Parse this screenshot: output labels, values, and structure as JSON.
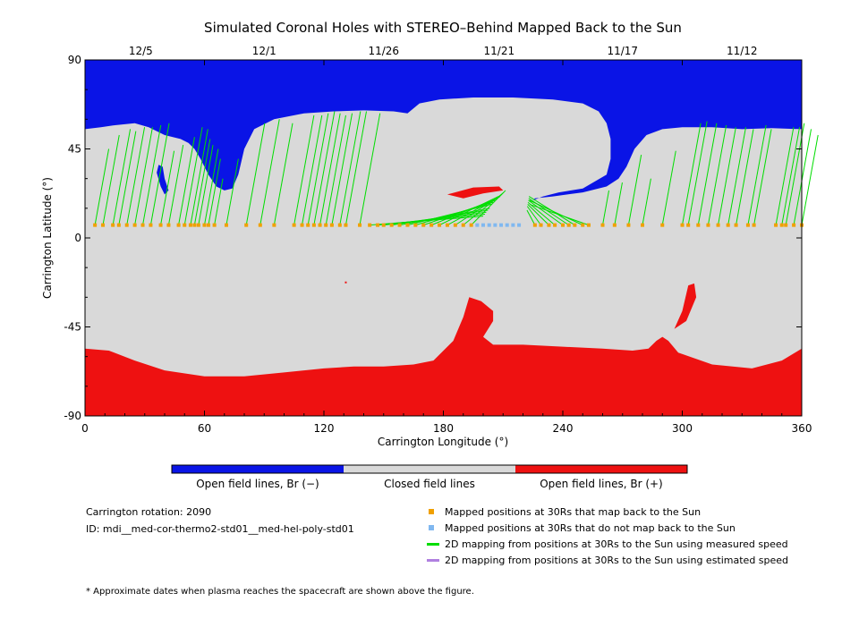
{
  "chart_data": {
    "type": "map",
    "title": "Simulated Coronal Holes with STEREO–Behind Mapped Back to the Sun",
    "xlabel": "Carrington Longitude (°)",
    "ylabel": "Carrington Latitude (°)",
    "xlim": [
      0,
      360
    ],
    "ylim": [
      -90,
      90
    ],
    "x_ticks": [
      "0",
      "60",
      "120",
      "180",
      "240",
      "300",
      "360"
    ],
    "x_tick_values": [
      0,
      60,
      120,
      180,
      240,
      300,
      360
    ],
    "y_ticks": [
      "90",
      "45",
      "0",
      "-45",
      "-90"
    ],
    "y_tick_values": [
      90,
      45,
      0,
      -45,
      -90
    ],
    "top_axis_dates": [
      {
        "label": "12/5",
        "lon": 28
      },
      {
        "label": "12/1",
        "lon": 90
      },
      {
        "label": "11/26",
        "lon": 150
      },
      {
        "label": "11/21",
        "lon": 208
      },
      {
        "label": "11/17",
        "lon": 270
      },
      {
        "label": "11/12",
        "lon": 330
      }
    ],
    "spacecraft_latitude": 6.5,
    "colors": {
      "open_negative": "#0a14e6",
      "closed": "#d9d9d9",
      "open_positive": "#ee1111",
      "mapped": "#f0a000",
      "unmapped": "#80b8f0",
      "measured": "#00dd00",
      "estimated": "#b080e0"
    },
    "colorbar": [
      {
        "label": "Open field lines, Br (−)",
        "color": "#0a14e6"
      },
      {
        "label": "Closed field lines",
        "color": "#d9d9d9"
      },
      {
        "label": "Open field lines, Br (+)",
        "color": "#ee1111"
      }
    ],
    "regions": {
      "north_negative_boundary": [
        [
          0,
          55
        ],
        [
          8,
          56
        ],
        [
          15,
          57
        ],
        [
          25,
          58
        ],
        [
          32,
          56
        ],
        [
          40,
          52
        ],
        [
          48,
          50
        ],
        [
          52,
          48
        ],
        [
          55,
          45
        ],
        [
          58,
          40
        ],
        [
          62,
          32
        ],
        [
          66,
          26
        ],
        [
          70,
          24
        ],
        [
          74,
          25
        ],
        [
          77,
          32
        ],
        [
          80,
          45
        ],
        [
          85,
          55
        ],
        [
          95,
          60
        ],
        [
          110,
          63
        ],
        [
          125,
          64
        ],
        [
          140,
          64.5
        ],
        [
          155,
          64
        ],
        [
          162,
          63
        ],
        [
          168,
          68
        ],
        [
          178,
          70
        ],
        [
          195,
          71
        ],
        [
          215,
          71
        ],
        [
          235,
          70
        ],
        [
          250,
          68
        ],
        [
          258,
          64
        ],
        [
          262,
          58
        ],
        [
          264,
          50
        ],
        [
          264,
          40
        ],
        [
          262,
          32
        ],
        [
          250,
          25
        ],
        [
          238,
          23
        ],
        [
          230,
          21
        ],
        [
          225,
          19
        ],
        [
          226,
          20
        ],
        [
          235,
          21
        ],
        [
          250,
          23
        ],
        [
          262,
          26
        ],
        [
          268,
          30
        ],
        [
          272,
          36
        ],
        [
          276,
          45
        ],
        [
          282,
          52
        ],
        [
          290,
          55
        ],
        [
          300,
          56
        ],
        [
          315,
          56
        ],
        [
          330,
          55
        ],
        [
          345,
          55.5
        ],
        [
          360,
          55
        ]
      ],
      "south_positive_boundary": [
        [
          0,
          -56
        ],
        [
          12,
          -57
        ],
        [
          25,
          -62
        ],
        [
          40,
          -67
        ],
        [
          60,
          -70
        ],
        [
          80,
          -70
        ],
        [
          100,
          -68
        ],
        [
          120,
          -66
        ],
        [
          135,
          -65
        ],
        [
          150,
          -65
        ],
        [
          165,
          -64
        ],
        [
          175,
          -62
        ],
        [
          185,
          -52
        ],
        [
          190,
          -40
        ],
        [
          193,
          -30
        ],
        [
          199,
          -32
        ],
        [
          205,
          -37
        ],
        [
          205,
          -42
        ],
        [
          200,
          -50
        ],
        [
          205,
          -54
        ],
        [
          220,
          -54
        ],
        [
          240,
          -55
        ],
        [
          260,
          -56
        ],
        [
          275,
          -57
        ],
        [
          283,
          -56
        ],
        [
          287,
          -52
        ],
        [
          290,
          -50
        ],
        [
          293,
          -52
        ],
        [
          298,
          -58
        ],
        [
          315,
          -64
        ],
        [
          335,
          -66
        ],
        [
          350,
          -62
        ],
        [
          360,
          -56
        ]
      ],
      "blue_island": [
        [
          36,
          33
        ],
        [
          37,
          37
        ],
        [
          39,
          36
        ],
        [
          40,
          30
        ],
        [
          42,
          24
        ],
        [
          40,
          22
        ],
        [
          38,
          26
        ]
      ],
      "red_island_south": [
        [
          296,
          -46
        ],
        [
          300,
          -37
        ],
        [
          303,
          -24
        ],
        [
          306,
          -23
        ],
        [
          307,
          -30
        ],
        [
          302,
          -42
        ]
      ],
      "red_equatorial_streak": [
        [
          182,
          22
        ],
        [
          195,
          25.5
        ],
        [
          208,
          26
        ],
        [
          210,
          24
        ],
        [
          200,
          22.5
        ],
        [
          190,
          20
        ]
      ],
      "red_dot": [
        [
          131,
          -22.5
        ]
      ]
    },
    "mapped_points_lon": [
      5,
      9,
      14,
      17,
      21,
      25,
      29,
      33,
      38,
      42,
      47,
      50,
      53,
      55,
      57,
      60,
      62,
      65,
      71,
      81,
      88,
      95,
      105,
      109,
      112,
      115,
      118,
      121,
      124,
      128,
      131,
      138,
      143,
      147,
      150,
      154,
      158,
      162,
      166,
      170,
      174,
      178,
      182,
      186,
      190,
      194,
      226,
      229,
      233,
      236,
      240,
      243,
      246,
      250,
      253,
      260,
      266,
      273,
      280,
      290,
      300,
      303,
      308,
      313,
      318,
      323,
      327,
      333,
      336,
      347,
      350,
      352,
      356,
      360
    ],
    "unmapped_points_lon": [
      197,
      200,
      203,
      206,
      209,
      212,
      215,
      218
    ],
    "field_lines": [
      [
        5,
        45
      ],
      [
        9,
        52
      ],
      [
        14,
        55
      ],
      [
        17,
        54
      ],
      [
        21,
        56
      ],
      [
        25,
        56
      ],
      [
        29,
        57
      ],
      [
        33,
        58
      ],
      [
        38,
        44
      ],
      [
        42,
        47
      ],
      [
        47,
        51
      ],
      [
        50,
        56
      ],
      [
        53,
        55
      ],
      [
        55,
        50
      ],
      [
        57,
        47
      ],
      [
        60,
        45
      ],
      [
        62,
        40
      ],
      [
        65,
        30
      ],
      [
        71,
        40
      ],
      [
        81,
        58
      ],
      [
        88,
        60
      ],
      [
        95,
        58
      ],
      [
        105,
        62
      ],
      [
        109,
        62
      ],
      [
        112,
        63
      ],
      [
        115,
        64
      ],
      [
        118,
        63
      ],
      [
        121,
        62
      ],
      [
        124,
        63
      ],
      [
        128,
        64
      ],
      [
        131,
        64
      ],
      [
        138,
        63
      ],
      [
        143,
        11
      ],
      [
        147,
        12
      ],
      [
        150,
        13
      ],
      [
        154,
        14
      ],
      [
        158,
        15
      ],
      [
        162,
        17
      ],
      [
        166,
        18
      ],
      [
        170,
        19
      ],
      [
        174,
        20
      ],
      [
        178,
        21
      ],
      [
        182,
        21
      ],
      [
        186,
        22
      ],
      [
        190,
        23
      ],
      [
        194,
        24
      ],
      [
        226,
        14
      ],
      [
        229,
        16
      ],
      [
        233,
        17
      ],
      [
        236,
        18
      ],
      [
        240,
        19
      ],
      [
        243,
        20
      ],
      [
        246,
        21
      ],
      [
        250,
        19
      ],
      [
        253,
        17
      ],
      [
        260,
        24
      ],
      [
        266,
        28
      ],
      [
        273,
        42
      ],
      [
        280,
        30
      ],
      [
        290,
        44
      ],
      [
        300,
        58
      ],
      [
        303,
        59
      ],
      [
        308,
        58
      ],
      [
        313,
        57
      ],
      [
        318,
        56
      ],
      [
        323,
        56
      ],
      [
        327,
        55
      ],
      [
        333,
        57
      ],
      [
        336,
        55
      ],
      [
        347,
        56
      ],
      [
        350,
        56
      ],
      [
        352,
        58
      ],
      [
        356,
        55
      ],
      [
        360,
        52
      ]
    ]
  },
  "info": {
    "rotation": "Carrington rotation: 2090",
    "id": "ID: mdi__med-cor-thermo2-std01__med-hel-poly-std01",
    "footnote": "* Approximate dates when plasma reaches the spacecraft are shown above the figure."
  },
  "legend": [
    {
      "label": "Mapped positions at 30Rs that map back to the Sun",
      "color": "#f0a000",
      "kind": "square"
    },
    {
      "label": "Mapped positions at 30Rs that do not map back to the Sun",
      "color": "#80b8f0",
      "kind": "square"
    },
    {
      "label": "2D mapping from positions at 30Rs to the Sun using measured speed",
      "color": "#00dd00",
      "kind": "line"
    },
    {
      "label": "2D mapping from positions at 30Rs to the Sun using estimated speed",
      "color": "#b080e0",
      "kind": "line"
    }
  ]
}
